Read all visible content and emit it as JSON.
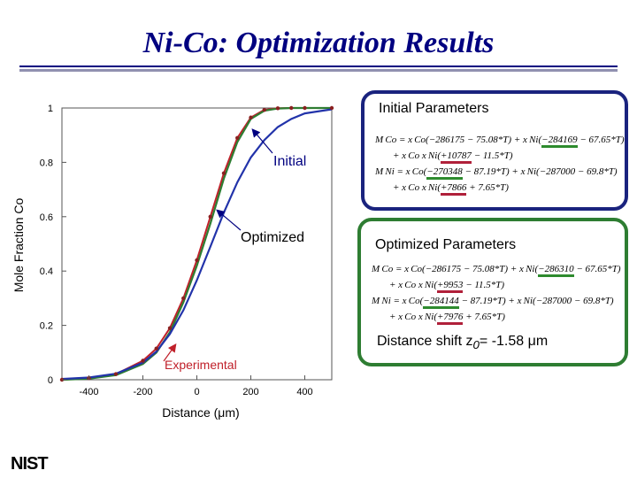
{
  "page": {
    "title": "Ni-Co: Optimization Results",
    "logo": "NIST"
  },
  "chart_data": {
    "type": "line",
    "xlabel": "Distance (μm)",
    "ylabel": "Mole Fraction Co",
    "xlim": [
      -500,
      500
    ],
    "ylim": [
      0,
      1
    ],
    "x_ticks": [
      -400,
      -200,
      0,
      200,
      400
    ],
    "y_ticks": [
      0,
      0.2,
      0.4,
      0.6,
      0.8,
      1
    ],
    "x_tick_labels": [
      "-400",
      "-200",
      "0",
      "200",
      "400"
    ],
    "y_tick_labels": [
      "0",
      "0.2",
      "0.4",
      "0.6",
      "0.8",
      "1"
    ],
    "grid": false,
    "annotations": [
      {
        "text": "Initial",
        "color": "#000080",
        "points_to": [
          213,
          0.92
        ]
      },
      {
        "text": "Optimized",
        "color": "#000000",
        "points_to": [
          65,
          0.62
        ]
      },
      {
        "text": "Experimental",
        "color": "#c0202a",
        "points_to": [
          -110,
          0.12
        ]
      }
    ],
    "series": [
      {
        "name": "Initial",
        "color": "#2233aa",
        "x": [
          -500,
          -400,
          -300,
          -200,
          -150,
          -100,
          -50,
          0,
          50,
          100,
          150,
          200,
          250,
          300,
          350,
          400,
          500
        ],
        "y": [
          0.003,
          0.008,
          0.022,
          0.063,
          0.104,
          0.168,
          0.256,
          0.366,
          0.49,
          0.615,
          0.727,
          0.818,
          0.882,
          0.93,
          0.96,
          0.98,
          0.995
        ]
      },
      {
        "name": "Optimized",
        "color": "#2e7d32",
        "x": [
          -500,
          -400,
          -300,
          -200,
          -150,
          -100,
          -50,
          0,
          50,
          100,
          150,
          200,
          250,
          300,
          350,
          400,
          500
        ],
        "y": [
          0.0,
          0.004,
          0.017,
          0.058,
          0.1,
          0.175,
          0.285,
          0.42,
          0.575,
          0.74,
          0.875,
          0.96,
          0.99,
          0.998,
          1.0,
          1.0,
          1.0
        ]
      },
      {
        "name": "Experimental",
        "color": "#c0202a",
        "x": [
          -500,
          -400,
          -300,
          -200,
          -150,
          -100,
          -50,
          0,
          50,
          100,
          150,
          200,
          250,
          300,
          350,
          400,
          500
        ],
        "y": [
          0.0,
          0.006,
          0.021,
          0.07,
          0.115,
          0.19,
          0.3,
          0.44,
          0.6,
          0.76,
          0.89,
          0.965,
          0.993,
          0.999,
          1.0,
          1.0,
          1.0
        ]
      }
    ]
  },
  "panels": {
    "initial": {
      "heading": "Initial Parameters",
      "eq1_pre": "M Co = x Co(−286175 − 75.08*T) + x Ni(",
      "eq1_u": "−284169",
      "eq1_post": " − 67.65*T)",
      "eq2_pre": "+ x Co x Ni(",
      "eq2_u": "+10787",
      "eq2_post": " − 11.5*T)",
      "eq3_pre": "M Ni = x Co(",
      "eq3_u": "−270348",
      "eq3_post": " − 87.19*T) + x Ni(−287000 − 69.8*T)",
      "eq4_pre": "+ x Co x Ni(",
      "eq4_u": "+7866",
      "eq4_post": " + 7.65*T)"
    },
    "optimized": {
      "heading": "Optimized Parameters",
      "eq1_pre": "M Co = x Co(−286175 − 75.08*T) + x Ni(",
      "eq1_u": "−286310",
      "eq1_post": " − 67.65*T)",
      "eq2_pre": "+ x Co x Ni(",
      "eq2_u": "+9953",
      "eq2_post": " − 11.5*T)",
      "eq3_pre": "M Ni = x Co(",
      "eq3_u": "−284144",
      "eq3_post": " − 87.19*T) + x Ni(−287000 − 69.8*T)",
      "eq4_pre": "+ x Co x Ni(",
      "eq4_u": "+7976",
      "eq4_post": " + 7.65*T)",
      "shift_label": "Distance shift  z",
      "shift_sub": "0",
      "shift_value": "= -1.58 μm"
    }
  }
}
